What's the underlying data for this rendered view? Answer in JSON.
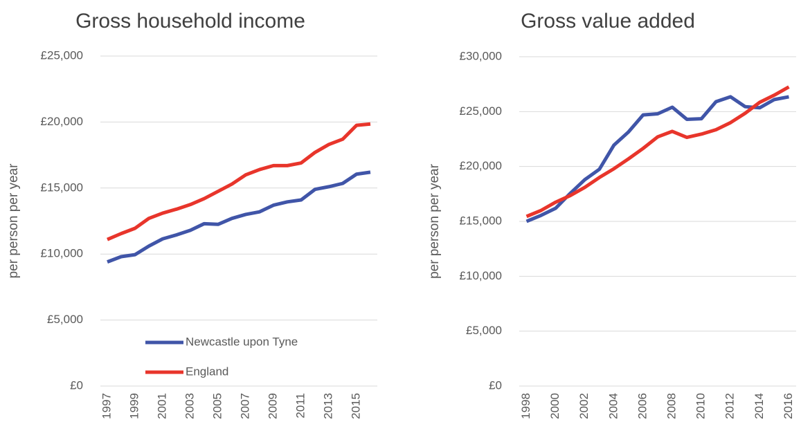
{
  "chart_data": [
    {
      "type": "line",
      "title": "Gross household income",
      "y_label": "per person per year",
      "x": [
        1997,
        1998,
        1999,
        2000,
        2001,
        2002,
        2003,
        2004,
        2005,
        2006,
        2007,
        2008,
        2009,
        2010,
        2011,
        2012,
        2013,
        2014,
        2015,
        2016
      ],
      "xlim": [
        1996.5,
        2016.5
      ],
      "xticks": [
        1997,
        1999,
        2001,
        2003,
        2005,
        2007,
        2009,
        2011,
        2013,
        2015
      ],
      "ylim": [
        0,
        25000
      ],
      "yticks": [
        {
          "value": 0,
          "label": "£0"
        },
        {
          "value": 5000,
          "label": "£5,000"
        },
        {
          "value": 10000,
          "label": "£10,000"
        },
        {
          "value": 15000,
          "label": "£15,000"
        },
        {
          "value": 20000,
          "label": "£20,000"
        },
        {
          "value": 25000,
          "label": "£25,000"
        }
      ],
      "grid": true,
      "legend": "lower center",
      "series": [
        {
          "name": "Newcastle upon Tyne",
          "color": "#4055a8",
          "values": [
            9400,
            9800,
            9950,
            10600,
            11150,
            11450,
            11800,
            12300,
            12250,
            12700,
            13000,
            13200,
            13700,
            13950,
            14100,
            14900,
            15100,
            15350,
            16050,
            16200
          ]
        },
        {
          "name": "England",
          "color": "#e8352b",
          "values": [
            11100,
            11550,
            11950,
            12700,
            13100,
            13400,
            13750,
            14200,
            14750,
            15300,
            16000,
            16400,
            16700,
            16700,
            16900,
            17700,
            18300,
            18700,
            19750,
            19850
          ]
        }
      ]
    },
    {
      "type": "line",
      "title": "Gross value added",
      "y_label": "per person per year",
      "x": [
        1998,
        1999,
        2000,
        2001,
        2002,
        2003,
        2004,
        2005,
        2006,
        2007,
        2008,
        2009,
        2010,
        2011,
        2012,
        2013,
        2014,
        2015,
        2016
      ],
      "xlim": [
        1997.5,
        2016.5
      ],
      "xticks": [
        1998,
        2000,
        2002,
        2004,
        2006,
        2008,
        2010,
        2012,
        2014,
        2016
      ],
      "ylim": [
        0,
        30000
      ],
      "yticks": [
        {
          "value": 0,
          "label": "£0"
        },
        {
          "value": 5000,
          "label": "£5,000"
        },
        {
          "value": 10000,
          "label": "£10,000"
        },
        {
          "value": 15000,
          "label": "£15,000"
        },
        {
          "value": 20000,
          "label": "£20,000"
        },
        {
          "value": 25000,
          "label": "£25,000"
        },
        {
          "value": 30000,
          "label": "£30,000"
        }
      ],
      "grid": true,
      "series": [
        {
          "color": "#4055a8",
          "values": [
            15000,
            15550,
            16200,
            17550,
            18800,
            19750,
            21950,
            23150,
            24700,
            24800,
            25400,
            24300,
            24350,
            25900,
            26350,
            25450,
            25350,
            26100,
            26350
          ]
        },
        {
          "color": "#e8352b",
          "values": [
            15450,
            16000,
            16750,
            17350,
            18100,
            19000,
            19800,
            20700,
            21650,
            22700,
            23200,
            22650,
            22950,
            23350,
            24000,
            24850,
            25850,
            26500,
            27250
          ]
        }
      ]
    }
  ]
}
